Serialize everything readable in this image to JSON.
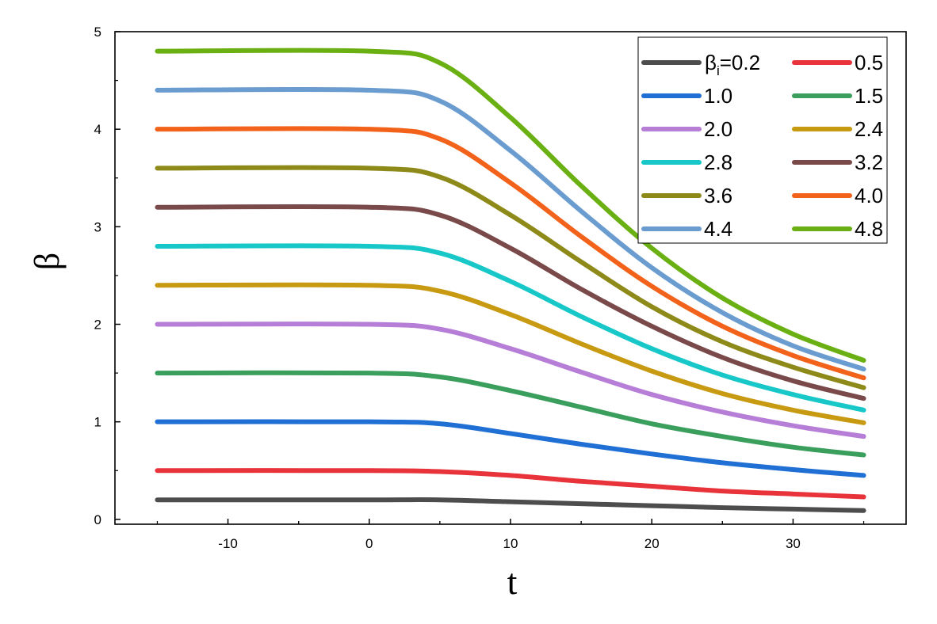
{
  "chart_data": {
    "type": "line",
    "title": "",
    "xlabel": "t",
    "ylabel": "β",
    "xlim": [
      -18,
      38
    ],
    "ylim": [
      -0.05,
      5
    ],
    "xticks": [
      -10,
      0,
      10,
      20,
      30
    ],
    "yticks": [
      0,
      1,
      2,
      3,
      4,
      5
    ],
    "grid": false,
    "legend": {
      "placement": "top-right",
      "first_prefix": "β",
      "first_subscript": "i",
      "first_suffix": "="
    },
    "x": [
      -15,
      0,
      5,
      10,
      15,
      20,
      25,
      30,
      35
    ],
    "series": [
      {
        "name": "0.2",
        "color": "#4d4d4d",
        "values": [
          0.2,
          0.2,
          0.2,
          0.18,
          0.16,
          0.14,
          0.12,
          0.105,
          0.09
        ]
      },
      {
        "name": "0.5",
        "color": "#e8333a",
        "values": [
          0.5,
          0.5,
          0.49,
          0.45,
          0.39,
          0.34,
          0.29,
          0.26,
          0.23
        ]
      },
      {
        "name": "1.0",
        "color": "#1f6fd4",
        "values": [
          1.0,
          1.0,
          0.98,
          0.88,
          0.77,
          0.67,
          0.58,
          0.51,
          0.45
        ]
      },
      {
        "name": "1.5",
        "color": "#3a9e5c",
        "values": [
          1.5,
          1.5,
          1.46,
          1.32,
          1.15,
          0.98,
          0.85,
          0.74,
          0.66
        ]
      },
      {
        "name": "2.0",
        "color": "#b77ed8",
        "values": [
          2.0,
          2.0,
          1.95,
          1.75,
          1.51,
          1.28,
          1.1,
          0.96,
          0.85
        ]
      },
      {
        "name": "2.4",
        "color": "#c79a12",
        "values": [
          2.4,
          2.4,
          2.34,
          2.1,
          1.8,
          1.52,
          1.29,
          1.12,
          0.99
        ]
      },
      {
        "name": "2.8",
        "color": "#18c8c8",
        "values": [
          2.8,
          2.8,
          2.73,
          2.44,
          2.08,
          1.75,
          1.48,
          1.28,
          1.12
        ]
      },
      {
        "name": "3.2",
        "color": "#7a4a4a",
        "values": [
          3.2,
          3.2,
          3.12,
          2.78,
          2.36,
          1.98,
          1.66,
          1.42,
          1.24
        ]
      },
      {
        "name": "3.6",
        "color": "#8e8a1a",
        "values": [
          3.6,
          3.6,
          3.51,
          3.12,
          2.64,
          2.18,
          1.82,
          1.56,
          1.35
        ]
      },
      {
        "name": "4.0",
        "color": "#f2621a",
        "values": [
          4.0,
          4.0,
          3.9,
          3.45,
          2.9,
          2.39,
          1.98,
          1.68,
          1.45
        ]
      },
      {
        "name": "4.4",
        "color": "#6a9cd0",
        "values": [
          4.4,
          4.4,
          4.29,
          3.78,
          3.16,
          2.58,
          2.12,
          1.78,
          1.54
        ]
      },
      {
        "name": "4.8",
        "color": "#6ab012",
        "values": [
          4.8,
          4.8,
          4.68,
          4.12,
          3.42,
          2.78,
          2.27,
          1.9,
          1.63
        ]
      }
    ]
  }
}
